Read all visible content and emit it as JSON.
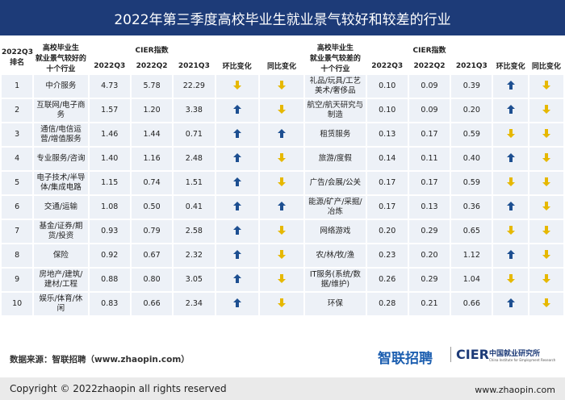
{
  "header": {
    "title": "2022年第三季度高校毕业生就业景气较好和较差的行业"
  },
  "table": {
    "columns": {
      "rank": "2022Q3\n排名",
      "best": "高校毕业生\n就业景气较好的\n十个行业",
      "index": "CIER指数",
      "q3": "2022Q3",
      "q2": "2022Q2",
      "y21": "2021Q3",
      "qoq": "环比变化",
      "yoy": "同比变化",
      "worst": "高校毕业生\n就业景气较差的\n十个行业"
    },
    "rows": [
      [
        1,
        "中介服务",
        "4.73",
        "5.78",
        "22.29",
        "礼品/玩具/工艺美术/奢侈品",
        "0.10",
        "0.09",
        "0.39"
      ],
      [
        2,
        "互联网/电子商务",
        "1.57",
        "1.20",
        "3.38",
        "航空/航天研究与制造",
        "0.10",
        "0.09",
        "0.20"
      ],
      [
        3,
        "通信/电信运营/增值服务",
        "1.46",
        "1.44",
        "0.71",
        "租赁服务",
        "0.13",
        "0.17",
        "0.59"
      ],
      [
        4,
        "专业服务/咨询",
        "1.40",
        "1.16",
        "2.48",
        "旅游/度假",
        "0.14",
        "0.11",
        "0.40"
      ],
      [
        5,
        "电子技术/半导体/集成电路",
        "1.15",
        "0.74",
        "1.51",
        "广告/会展/公关",
        "0.17",
        "0.17",
        "0.59"
      ],
      [
        6,
        "交通/运输",
        "1.08",
        "0.50",
        "0.41",
        "能源/矿产/采掘/冶炼",
        "0.17",
        "0.13",
        "0.36"
      ],
      [
        7,
        "基金/证券/期货/投资",
        "0.93",
        "0.79",
        "2.58",
        "网络游戏",
        "0.20",
        "0.29",
        "0.65"
      ],
      [
        8,
        "保险",
        "0.92",
        "0.67",
        "2.32",
        "农/林/牧/渔",
        "0.23",
        "0.20",
        "1.12"
      ],
      [
        9,
        "房地产/建筑/建材/工程",
        "0.88",
        "0.80",
        "3.05",
        "IT服务(系统/数据/维护)",
        "0.26",
        "0.29",
        "1.04"
      ],
      [
        10,
        "娱乐/体育/休闲",
        "0.83",
        "0.66",
        "2.34",
        "环保",
        "0.28",
        "0.21",
        "0.66"
      ]
    ]
  },
  "footer": {
    "source": "数据来源：智联招聘（www.zhaopin.com）",
    "logo": "智联招聘",
    "cier": "CIER",
    "institute": "中国就业研究所",
    "institute_en": "China Institute for Employment Research",
    "copyright": "Copyright ©  2022zhaopin all rights reserved",
    "url": "www.zhaopin.com"
  }
}
